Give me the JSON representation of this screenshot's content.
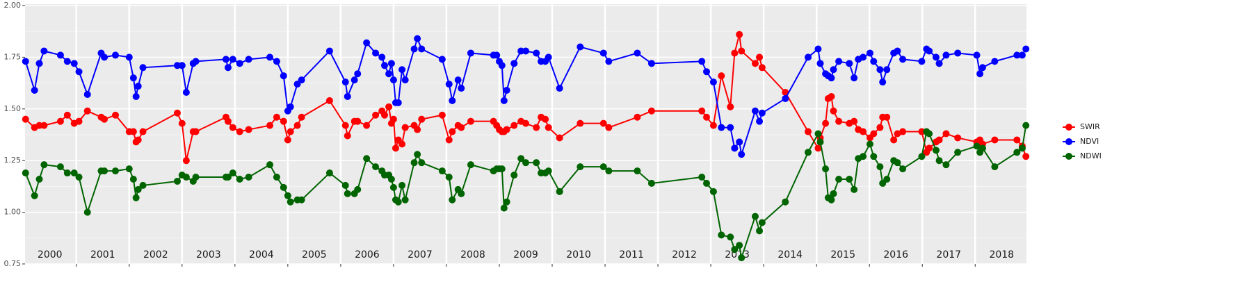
{
  "chart_data": {
    "type": "line",
    "x": [
      2000.04,
      2000.21,
      2000.3,
      2000.39,
      2000.7,
      2000.83,
      2000.96,
      2001.05,
      2001.21,
      2001.47,
      2001.53,
      2001.74,
      2002.0,
      2002.08,
      2002.13,
      2002.17,
      2002.26,
      2002.91,
      2003.0,
      2003.08,
      2003.21,
      2003.26,
      2003.83,
      2003.87,
      2003.96,
      2004.09,
      2004.26,
      2004.66,
      2004.79,
      2004.92,
      2005.0,
      2005.05,
      2005.18,
      2005.26,
      2005.79,
      2006.09,
      2006.13,
      2006.26,
      2006.32,
      2006.49,
      2006.66,
      2006.78,
      2006.83,
      2006.91,
      2006.96,
      2007.0,
      2007.04,
      2007.09,
      2007.16,
      2007.22,
      2007.39,
      2007.45,
      2007.53,
      2007.92,
      2008.05,
      2008.11,
      2008.22,
      2008.28,
      2008.46,
      2008.89,
      2008.95,
      2009.0,
      2009.05,
      2009.09,
      2009.14,
      2009.28,
      2009.41,
      2009.5,
      2009.7,
      2009.79,
      2009.87,
      2009.93,
      2010.14,
      2010.53,
      2010.97,
      2011.07,
      2011.61,
      2011.88,
      2012.83,
      2012.92,
      2013.05,
      2013.2,
      2013.37,
      2013.45,
      2013.54,
      2013.58,
      2013.84,
      2013.92,
      2013.97,
      2014.41,
      2014.84,
      2015.03,
      2015.07,
      2015.17,
      2015.22,
      2015.28,
      2015.32,
      2015.42,
      2015.62,
      2015.71,
      2015.79,
      2015.88,
      2016.01,
      2016.08,
      2016.2,
      2016.25,
      2016.33,
      2016.46,
      2016.53,
      2016.63,
      2016.99,
      2017.08,
      2017.13,
      2017.26,
      2017.32,
      2017.45,
      2017.67,
      2018.03,
      2018.09,
      2018.14,
      2018.37,
      2018.79,
      2018.89,
      2018.96
    ],
    "series": [
      {
        "name": "SWIR",
        "color": "#ff0000",
        "values": [
          1.45,
          1.41,
          1.42,
          1.42,
          1.44,
          1.47,
          1.43,
          1.44,
          1.49,
          1.46,
          1.45,
          1.47,
          1.39,
          1.39,
          1.34,
          1.35,
          1.39,
          1.48,
          1.43,
          1.25,
          1.39,
          1.39,
          1.46,
          1.44,
          1.41,
          1.39,
          1.4,
          1.42,
          1.46,
          1.44,
          1.35,
          1.39,
          1.42,
          1.46,
          1.54,
          1.42,
          1.37,
          1.44,
          1.44,
          1.42,
          1.47,
          1.49,
          1.47,
          1.51,
          1.43,
          1.45,
          1.31,
          1.35,
          1.33,
          1.41,
          1.42,
          1.4,
          1.45,
          1.47,
          1.35,
          1.39,
          1.42,
          1.41,
          1.44,
          1.44,
          1.42,
          1.4,
          1.39,
          1.39,
          1.4,
          1.42,
          1.44,
          1.43,
          1.41,
          1.46,
          1.45,
          1.41,
          1.36,
          1.43,
          1.43,
          1.41,
          1.46,
          1.49,
          1.49,
          1.46,
          1.42,
          1.66,
          1.51,
          1.77,
          1.86,
          1.78,
          1.72,
          1.75,
          1.7,
          1.58,
          1.39,
          1.31,
          1.36,
          1.43,
          1.55,
          1.56,
          1.49,
          1.44,
          1.43,
          1.44,
          1.4,
          1.39,
          1.36,
          1.38,
          1.41,
          1.46,
          1.46,
          1.35,
          1.38,
          1.39,
          1.39,
          1.29,
          1.31,
          1.34,
          1.35,
          1.38,
          1.36,
          1.34,
          1.35,
          1.33,
          1.35,
          1.35,
          1.32,
          1.27
        ]
      },
      {
        "name": "NDVI",
        "color": "#0000ff",
        "values": [
          1.73,
          1.59,
          1.72,
          1.78,
          1.76,
          1.73,
          1.72,
          1.68,
          1.57,
          1.77,
          1.75,
          1.76,
          1.75,
          1.65,
          1.56,
          1.61,
          1.7,
          1.71,
          1.71,
          1.58,
          1.72,
          1.73,
          1.74,
          1.7,
          1.74,
          1.72,
          1.74,
          1.75,
          1.73,
          1.66,
          1.49,
          1.51,
          1.62,
          1.64,
          1.78,
          1.63,
          1.56,
          1.64,
          1.67,
          1.82,
          1.77,
          1.75,
          1.71,
          1.67,
          1.72,
          1.64,
          1.53,
          1.53,
          1.69,
          1.64,
          1.79,
          1.84,
          1.79,
          1.74,
          1.62,
          1.54,
          1.64,
          1.6,
          1.77,
          1.76,
          1.76,
          1.73,
          1.71,
          1.54,
          1.59,
          1.72,
          1.78,
          1.78,
          1.77,
          1.73,
          1.73,
          1.75,
          1.6,
          1.8,
          1.77,
          1.73,
          1.77,
          1.72,
          1.73,
          1.68,
          1.63,
          1.41,
          1.41,
          1.31,
          1.34,
          1.28,
          1.49,
          1.44,
          1.48,
          1.55,
          1.75,
          1.79,
          1.72,
          1.67,
          1.66,
          1.65,
          1.69,
          1.73,
          1.72,
          1.65,
          1.74,
          1.75,
          1.77,
          1.73,
          1.69,
          1.63,
          1.69,
          1.77,
          1.78,
          1.74,
          1.73,
          1.79,
          1.78,
          1.75,
          1.72,
          1.76,
          1.77,
          1.76,
          1.67,
          1.7,
          1.73,
          1.76,
          1.76,
          1.79
        ]
      },
      {
        "name": "NDWI",
        "color": "#006400",
        "values": [
          1.19,
          1.08,
          1.16,
          1.23,
          1.22,
          1.19,
          1.19,
          1.17,
          1.0,
          1.2,
          1.2,
          1.2,
          1.21,
          1.16,
          1.07,
          1.11,
          1.13,
          1.15,
          1.18,
          1.17,
          1.15,
          1.17,
          1.17,
          1.17,
          1.19,
          1.16,
          1.17,
          1.23,
          1.17,
          1.12,
          1.08,
          1.05,
          1.06,
          1.06,
          1.19,
          1.13,
          1.09,
          1.09,
          1.11,
          1.26,
          1.22,
          1.2,
          1.18,
          1.18,
          1.16,
          1.12,
          1.06,
          1.05,
          1.13,
          1.06,
          1.24,
          1.28,
          1.24,
          1.2,
          1.17,
          1.06,
          1.11,
          1.09,
          1.23,
          1.2,
          1.21,
          1.21,
          1.21,
          1.02,
          1.05,
          1.18,
          1.26,
          1.24,
          1.24,
          1.19,
          1.19,
          1.2,
          1.1,
          1.22,
          1.22,
          1.2,
          1.2,
          1.14,
          1.17,
          1.14,
          1.1,
          0.89,
          0.88,
          0.82,
          0.84,
          0.78,
          0.98,
          0.91,
          0.95,
          1.05,
          1.29,
          1.38,
          1.34,
          1.21,
          1.07,
          1.06,
          1.09,
          1.16,
          1.16,
          1.11,
          1.26,
          1.27,
          1.33,
          1.27,
          1.22,
          1.14,
          1.16,
          1.25,
          1.24,
          1.21,
          1.27,
          1.39,
          1.38,
          1.3,
          1.25,
          1.23,
          1.29,
          1.32,
          1.29,
          1.31,
          1.22,
          1.29,
          1.31,
          1.42
        ]
      }
    ],
    "xlim": [
      2000.03,
      2018.97
    ],
    "ylim": [
      0.75,
      2.0
    ],
    "yticks": [
      0.75,
      {
        "value": 1.0,
        "label": "1.00"
      },
      1.25,
      {
        "value": 1.5,
        "label": "1.50"
      },
      1.75,
      {
        "value": 2.0,
        "label": "2.00"
      }
    ],
    "minor_yticks": [
      0.875,
      1.125,
      1.375,
      1.625,
      1.875
    ],
    "year_lines": [
      2001,
      2002,
      2003,
      2004,
      2005,
      2006,
      2007,
      2008,
      2009,
      2010,
      2011,
      2012,
      2013,
      2014,
      2015,
      2016,
      2017,
      2018
    ],
    "year_labels": [
      {
        "value": 2000.5,
        "label": "2000"
      },
      {
        "value": 2001.5,
        "label": "2001"
      },
      {
        "value": 2002.5,
        "label": "2002"
      },
      {
        "value": 2003.5,
        "label": "2003"
      },
      {
        "value": 2004.5,
        "label": "2004"
      },
      {
        "value": 2005.5,
        "label": "2005"
      },
      {
        "value": 2006.5,
        "label": "2006"
      },
      {
        "value": 2007.5,
        "label": "2007"
      },
      {
        "value": 2008.5,
        "label": "2008"
      },
      {
        "value": 2009.5,
        "label": "2009"
      },
      {
        "value": 2010.5,
        "label": "2010"
      },
      {
        "value": 2011.5,
        "label": "2011"
      },
      {
        "value": 2012.5,
        "label": "2012"
      },
      {
        "value": 2013.5,
        "label": "2013"
      },
      {
        "value": 2014.5,
        "label": "2014"
      },
      {
        "value": 2015.5,
        "label": "2015"
      },
      {
        "value": 2016.5,
        "label": "2016"
      },
      {
        "value": 2017.5,
        "label": "2017"
      },
      {
        "value": 2018.5,
        "label": "2018"
      }
    ],
    "grid": true,
    "legend": "right"
  }
}
